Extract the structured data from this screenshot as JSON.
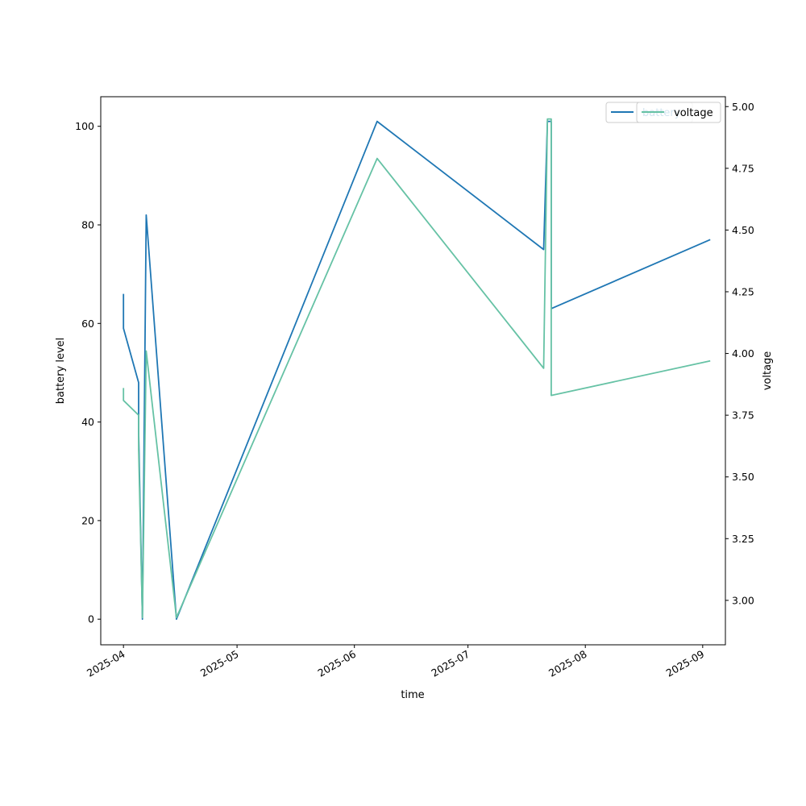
{
  "chart_data": {
    "type": "line",
    "title": "",
    "xlabel": "time",
    "ylabel": "battery level",
    "ylabel_right": "voltage",
    "xlim": [
      "2025-03-26",
      "2025-09-07"
    ],
    "ylim": [
      -5.2,
      106
    ],
    "ylim_right": [
      2.82,
      5.04
    ],
    "x_ticks": [
      "2025-04",
      "2025-05",
      "2025-06",
      "2025-07",
      "2025-08",
      "2025-09"
    ],
    "x_tick_dates": [
      "2025-04-01",
      "2025-05-01",
      "2025-06-01",
      "2025-07-01",
      "2025-08-01",
      "2025-09-01"
    ],
    "y_ticks": [
      0,
      20,
      40,
      60,
      80,
      100
    ],
    "y_ticks_right": [
      3.0,
      3.25,
      3.5,
      3.75,
      4.0,
      4.25,
      4.5,
      4.75,
      5.0
    ],
    "y_tick_labels_right": [
      "3.00",
      "3.25",
      "3.50",
      "3.75",
      "4.00",
      "4.25",
      "4.50",
      "4.75",
      "5.00"
    ],
    "legend_position": "top-right",
    "series": [
      {
        "name": "battery",
        "axis": "left",
        "color": "#1f77b4",
        "points": [
          [
            "2025-04-01",
            66
          ],
          [
            "2025-04-01",
            59
          ],
          [
            "2025-04-05",
            48
          ],
          [
            "2025-04-05",
            38
          ],
          [
            "2025-04-06",
            0
          ],
          [
            "2025-04-07",
            82
          ],
          [
            "2025-04-15",
            0
          ],
          [
            "2025-06-07",
            101
          ],
          [
            "2025-07-21",
            75
          ],
          [
            "2025-07-22",
            101
          ],
          [
            "2025-07-23",
            101
          ],
          [
            "2025-07-23",
            88
          ],
          [
            "2025-07-23",
            68
          ],
          [
            "2025-07-23",
            77
          ],
          [
            "2025-07-23",
            70
          ],
          [
            "2025-07-23",
            63
          ],
          [
            "2025-09-03",
            77
          ]
        ]
      },
      {
        "name": "voltage",
        "axis": "right",
        "color": "#66c2a5",
        "points": [
          [
            "2025-04-01",
            3.86
          ],
          [
            "2025-04-01",
            3.81
          ],
          [
            "2025-04-05",
            3.75
          ],
          [
            "2025-04-05",
            3.61
          ],
          [
            "2025-04-06",
            2.93
          ],
          [
            "2025-04-07",
            4.01
          ],
          [
            "2025-04-15",
            2.93
          ],
          [
            "2025-06-07",
            4.79
          ],
          [
            "2025-07-21",
            3.94
          ],
          [
            "2025-07-22",
            4.95
          ],
          [
            "2025-07-23",
            4.95
          ],
          [
            "2025-07-23",
            4.03
          ],
          [
            "2025-07-23",
            3.86
          ],
          [
            "2025-07-23",
            3.83
          ],
          [
            "2025-09-03",
            3.97
          ]
        ]
      }
    ]
  },
  "legends": [
    {
      "label": "battery",
      "color": "#1f77b4"
    },
    {
      "label": "voltage",
      "color": "#66c2a5"
    }
  ]
}
